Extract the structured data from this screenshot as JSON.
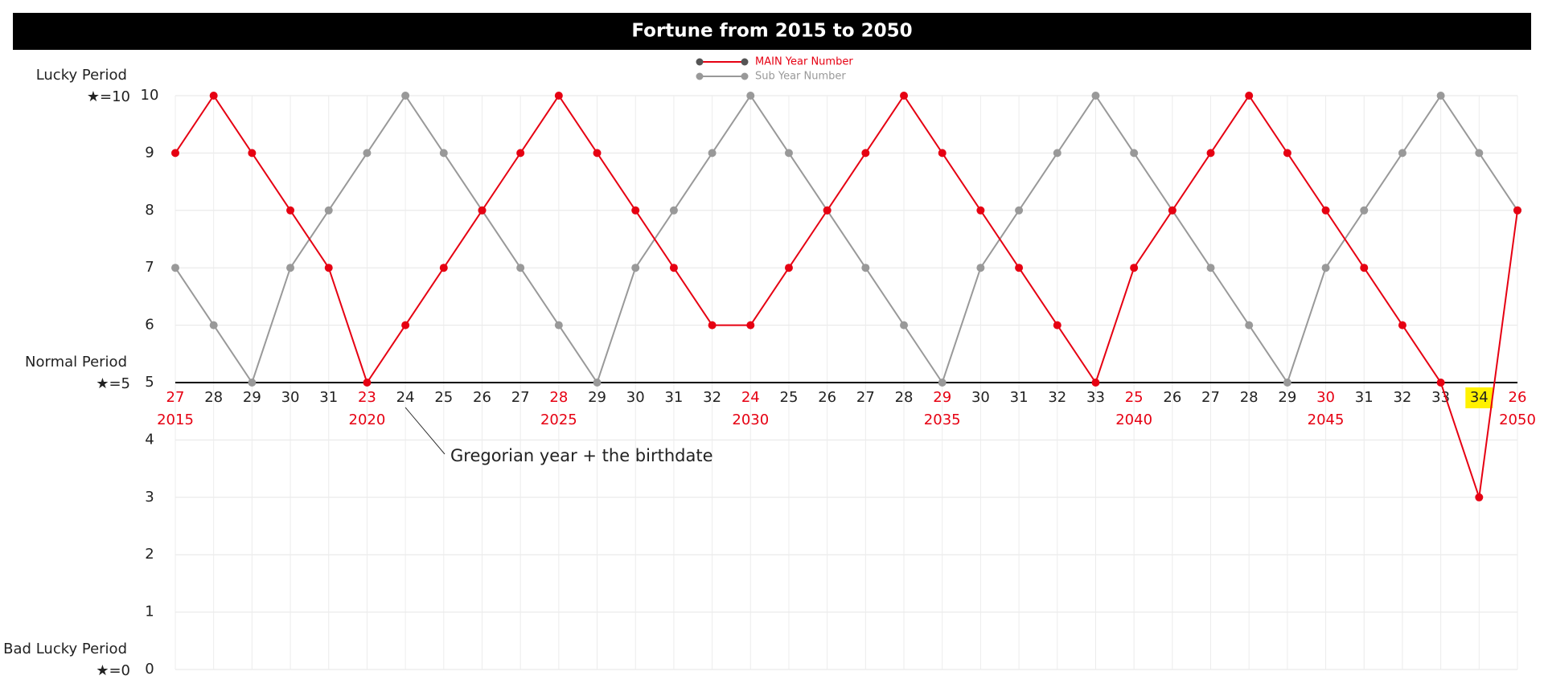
{
  "chart_data": {
    "type": "line",
    "title": "Fortune from 2015 to 2050",
    "categories": [
      27,
      28,
      29,
      30,
      31,
      23,
      24,
      25,
      26,
      27,
      28,
      29,
      30,
      31,
      32,
      24,
      25,
      26,
      27,
      28,
      29,
      30,
      31,
      32,
      33,
      25,
      26,
      27,
      28,
      29,
      30,
      31,
      32,
      33,
      34,
      26
    ],
    "year_labels": [
      2015,
      null,
      null,
      null,
      null,
      2020,
      null,
      null,
      null,
      null,
      2025,
      null,
      null,
      null,
      null,
      2030,
      null,
      null,
      null,
      null,
      2035,
      null,
      null,
      null,
      null,
      2040,
      null,
      null,
      null,
      null,
      2045,
      null,
      null,
      null,
      null,
      2050
    ],
    "series": [
      {
        "name": "MAIN Year Number",
        "color": "#e60012",
        "values": [
          9,
          10,
          9,
          8,
          7,
          5,
          6,
          7,
          8,
          9,
          10,
          9,
          8,
          7,
          6,
          6,
          7,
          8,
          9,
          10,
          9,
          8,
          7,
          6,
          5,
          7,
          8,
          9,
          10,
          9,
          8,
          7,
          6,
          5,
          3,
          8
        ]
      },
      {
        "name": "Sub Year Number",
        "color": "#999999",
        "values": [
          7,
          6,
          5,
          7,
          8,
          9,
          10,
          9,
          8,
          7,
          6,
          5,
          7,
          8,
          9,
          10,
          9,
          8,
          7,
          6,
          5,
          7,
          8,
          9,
          10,
          9,
          8,
          7,
          6,
          5,
          7,
          8,
          9,
          10,
          9,
          8
        ]
      }
    ],
    "ylim": [
      0,
      10
    ],
    "yticks": [
      0,
      1,
      2,
      3,
      4,
      5,
      6,
      7,
      8,
      9,
      10
    ],
    "grid": true,
    "period_labels": [
      {
        "name": "Lucky Period",
        "star": "★=10",
        "value": 10
      },
      {
        "name": "Normal Period",
        "star": "★=5",
        "value": 5
      },
      {
        "name": "Bad Lucky Period",
        "star": "★=0",
        "value": 0
      }
    ],
    "baseline": 5,
    "highlight": {
      "index": 34,
      "color": "#fff100"
    },
    "annotation": "Gregorian year + the birthdate"
  }
}
